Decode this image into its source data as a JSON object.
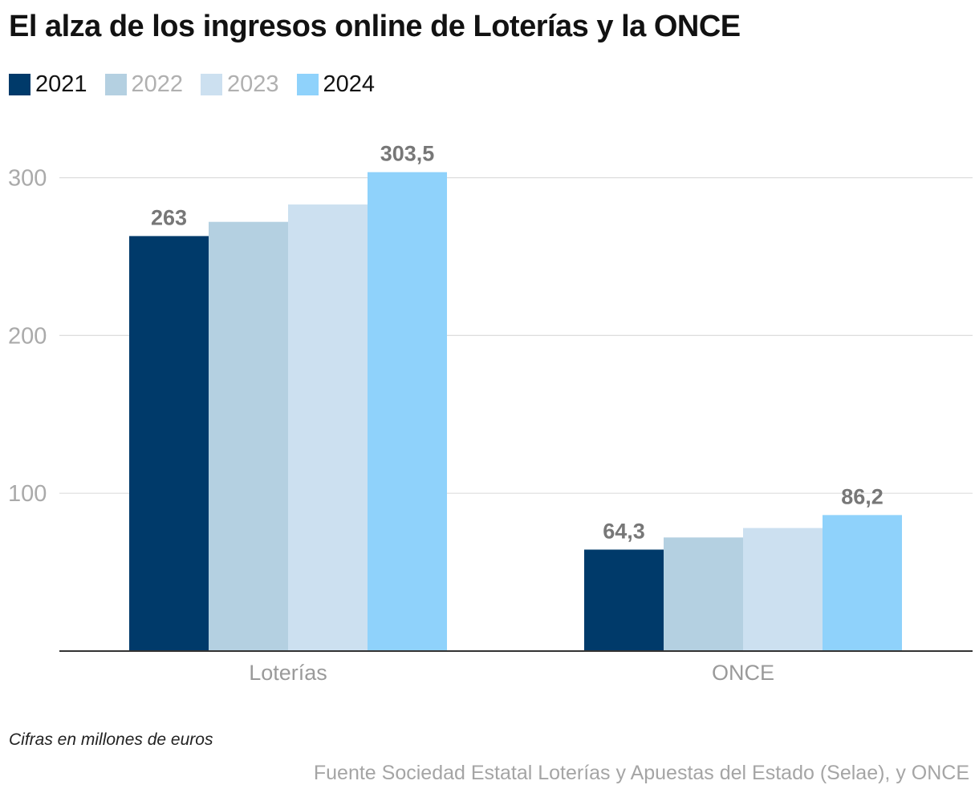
{
  "chart_data": {
    "type": "bar",
    "title": "El alza de los ingresos online de Loterías y la ONCE",
    "categories": [
      "Loterías",
      "ONCE"
    ],
    "series": [
      {
        "name": "2021",
        "values": [
          263,
          64.3
        ],
        "color": "#003a6a",
        "legend_text_color": "#121212",
        "labels": [
          "263",
          "64,3"
        ]
      },
      {
        "name": "2022",
        "values": [
          272,
          72
        ],
        "color": "#b4d0e1",
        "legend_text_color": "#b0b0b0",
        "labels": [
          "",
          ""
        ]
      },
      {
        "name": "2023",
        "values": [
          283,
          78
        ],
        "color": "#cce0f0",
        "legend_text_color": "#b0b0b0",
        "labels": [
          "",
          ""
        ]
      },
      {
        "name": "2024",
        "values": [
          303.5,
          86.2
        ],
        "color": "#8fd2fb",
        "legend_text_color": "#121212",
        "labels": [
          "303,5",
          "86,2"
        ]
      }
    ],
    "ylim": [
      0,
      300
    ],
    "yticks": [
      100,
      200,
      300
    ],
    "ytick_labels": [
      "100",
      "200",
      "300"
    ],
    "xlabel": "",
    "ylabel": "",
    "grid": true,
    "legend_position": "top-left",
    "note": "Cifras en millones de euros",
    "source": "Fuente Sociedad Estatal Loterías y Apuestas del Estado (Selae), y ONCE",
    "colors": {
      "grid": "#dddddd",
      "axis": "#333333",
      "tick_text": "#aaaaaa",
      "data_label": "#777777"
    }
  }
}
